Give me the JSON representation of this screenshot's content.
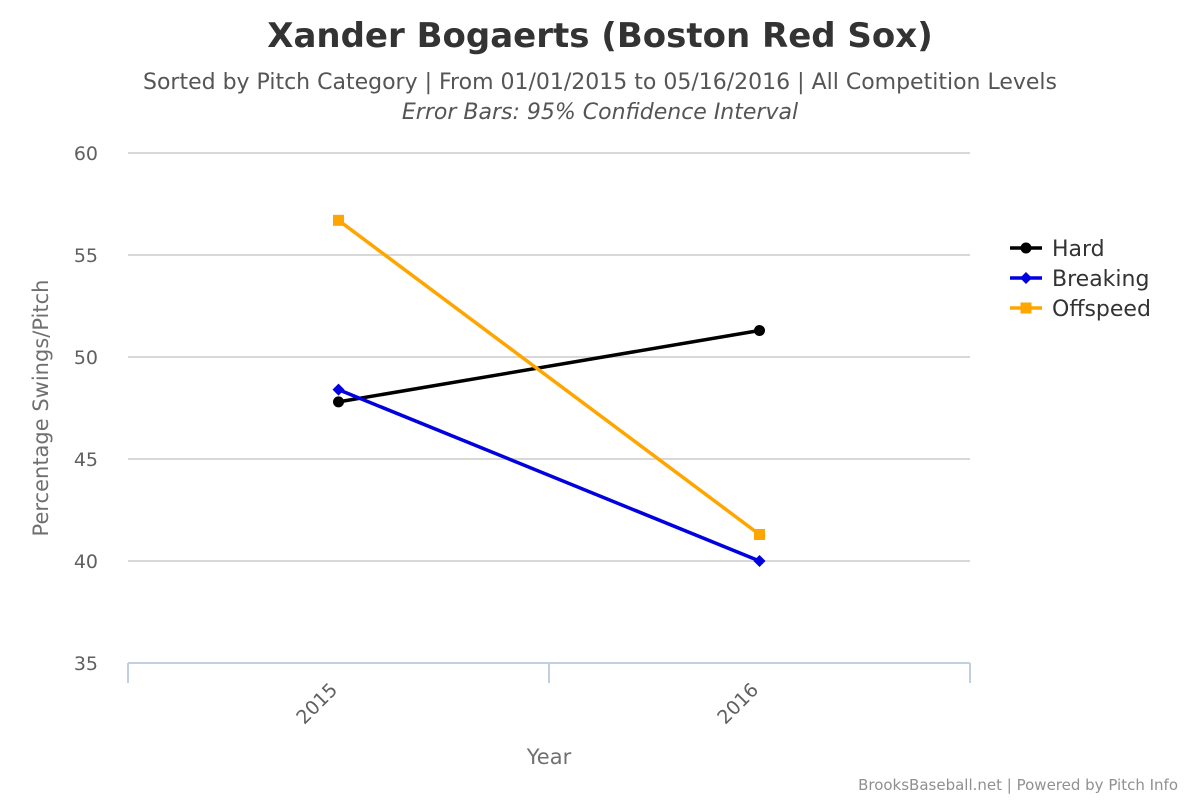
{
  "chart_data": {
    "type": "line",
    "title": "Xander Bogaerts (Boston Red Sox)",
    "subtitle": "Sorted by Pitch Category | From 01/01/2015 to 05/16/2016 | All Competition Levels",
    "subtitle2": "Error Bars: 95% Confidence Interval",
    "xlabel": "Year",
    "ylabel": "Percentage Swings/Pitch",
    "categories": [
      "2015",
      "2016"
    ],
    "ylim": [
      35,
      60
    ],
    "yticks": [
      35,
      40,
      45,
      50,
      55,
      60
    ],
    "grid": true,
    "legend_position": "right",
    "series": [
      {
        "name": "Hard",
        "values": [
          47.8,
          51.3
        ],
        "color": "#000000",
        "marker": "circle"
      },
      {
        "name": "Breaking",
        "values": [
          48.4,
          40.0
        ],
        "color": "#0000e0",
        "marker": "diamond"
      },
      {
        "name": "Offspeed",
        "values": [
          56.7,
          41.3
        ],
        "color": "#ffa500",
        "marker": "square"
      }
    ]
  },
  "credits": "BrooksBaseball.net | Powered by Pitch Info"
}
